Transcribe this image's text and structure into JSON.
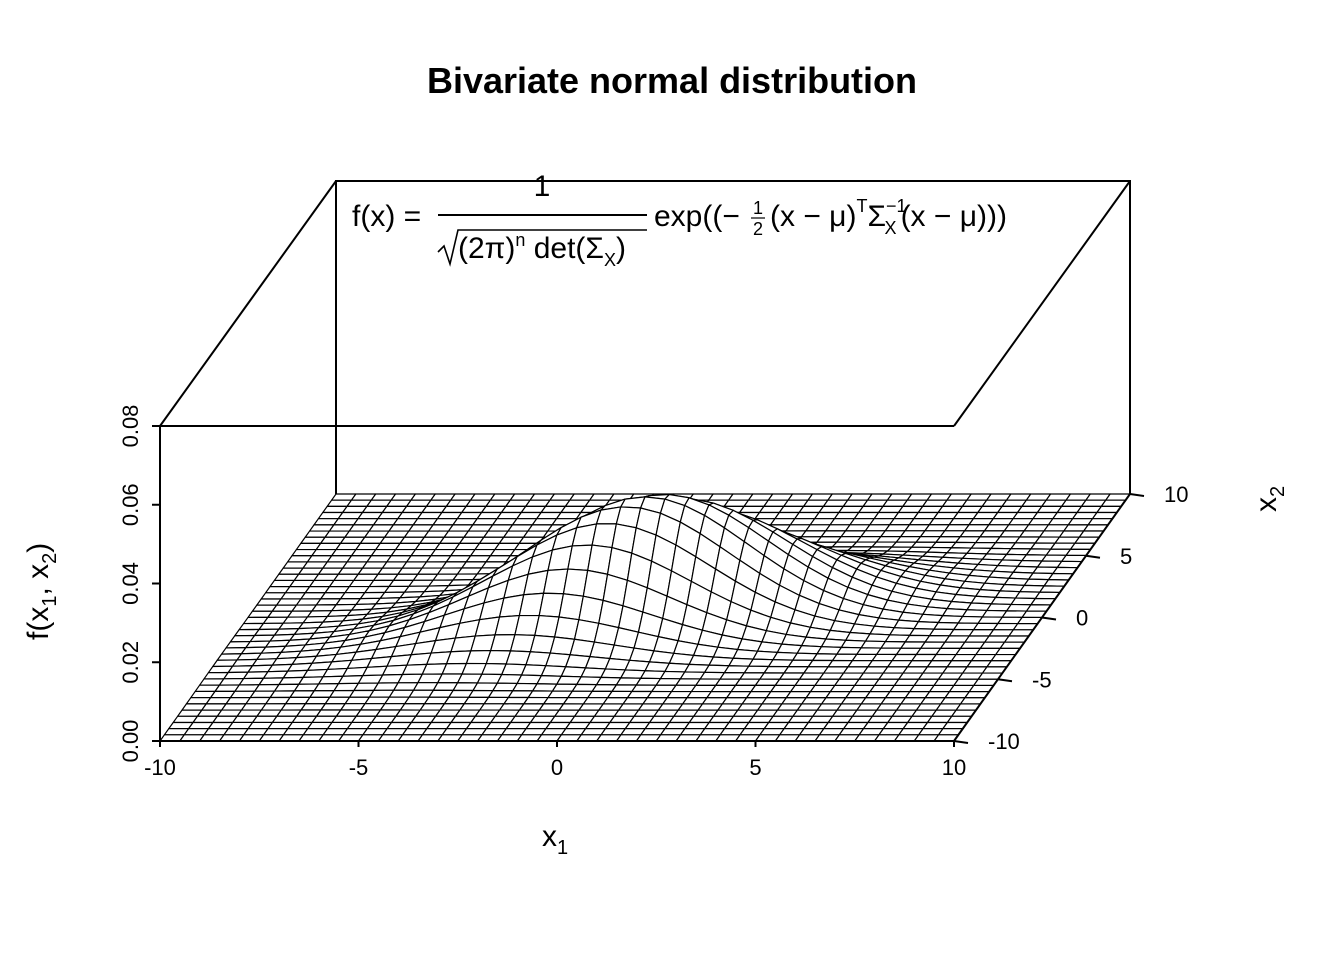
{
  "chart_data": {
    "type": "surface",
    "title": "Bivariate normal distribution",
    "xlabel": {
      "base": "x",
      "sub": "1"
    },
    "ylabel": {
      "base": "x",
      "sub": "2"
    },
    "zlabel": {
      "pre": "f(x",
      "sub1": "1",
      "mid": ", x",
      "sub2": "2",
      "post": ")"
    },
    "xlim": [
      -10,
      10
    ],
    "ylim": [
      -10,
      10
    ],
    "zlim": [
      0,
      0.08
    ],
    "x_ticks": [
      -10,
      -5,
      0,
      5,
      10
    ],
    "y_ticks": [
      -10,
      -5,
      0,
      5,
      10
    ],
    "z_ticks": [
      "0.00",
      "0.02",
      "0.04",
      "0.06",
      "0.08"
    ],
    "grid_points": 41,
    "distribution": {
      "mean": [
        0,
        0
      ],
      "sd": [
        3,
        2
      ],
      "correlation": 0.5
    },
    "view": {
      "theta_deg": 0,
      "phi_deg": 25
    },
    "formula": {
      "lhs": "f(x) =",
      "numerator": "1",
      "denominator_root": "(2π)",
      "denominator_exp": "n",
      "denominator_det": " det(Σ",
      "denominator_det_sub": "X",
      "denominator_close": ")",
      "exp_open": "exp((−",
      "half_num": "1",
      "half_den": "2",
      "exp_body1": "(x − μ)",
      "exp_sup_T": "T",
      "exp_sigma": "Σ",
      "exp_sigma_sup": "−1",
      "exp_sigma_sub": "X",
      "exp_body2": "(x − μ)))"
    }
  }
}
